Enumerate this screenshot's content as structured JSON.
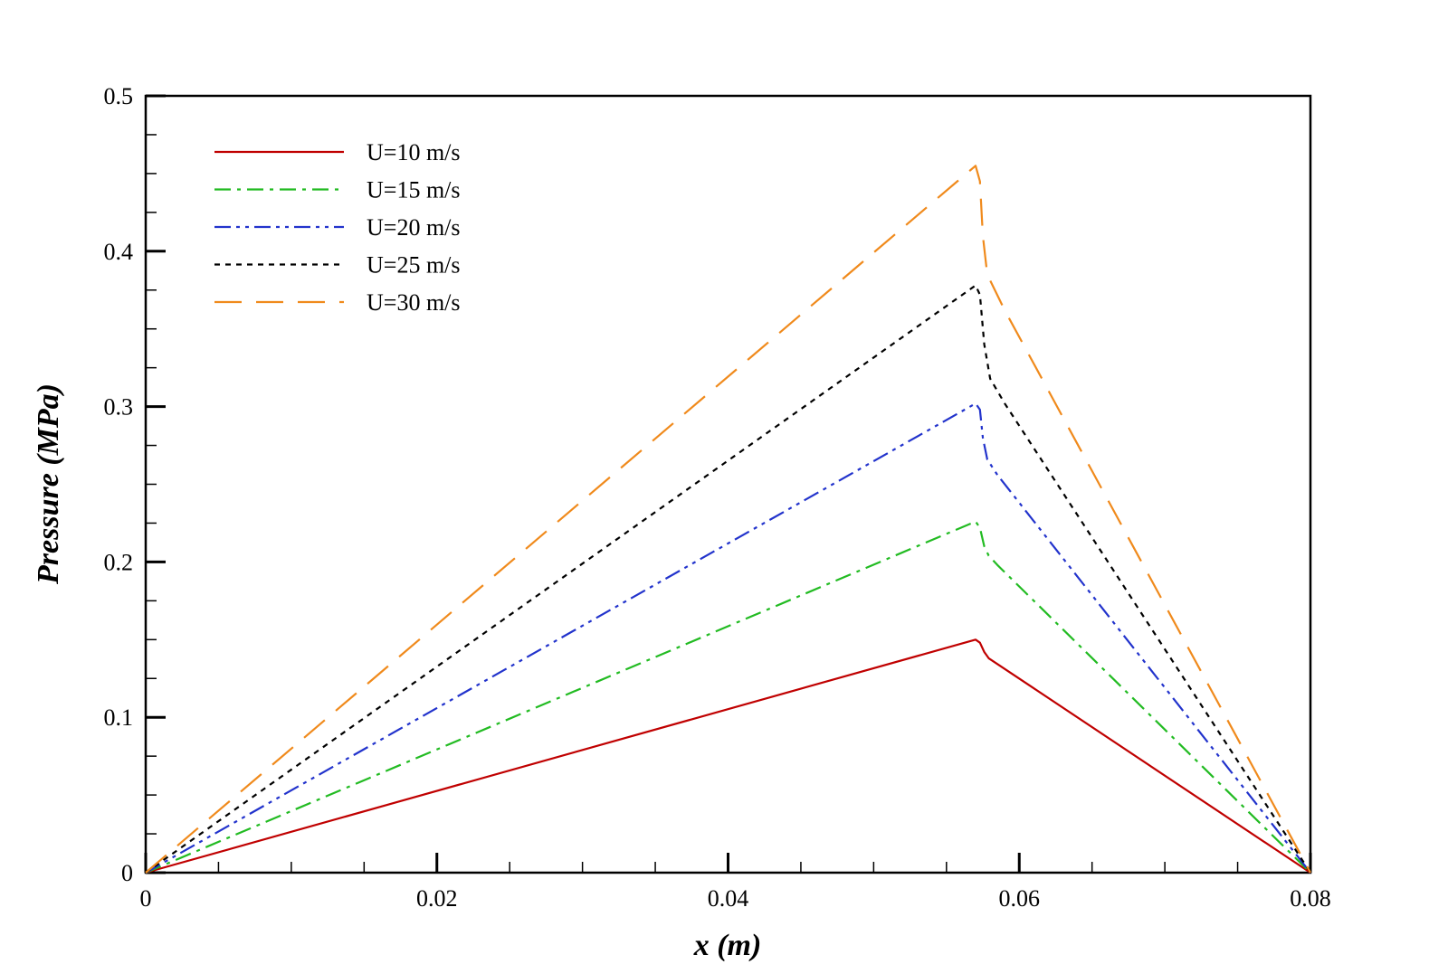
{
  "chart_data": {
    "type": "line",
    "xlabel": "x (m)",
    "ylabel": "Pressure (MPa)",
    "xlim": [
      0,
      0.08
    ],
    "ylim": [
      0,
      0.5
    ],
    "xticks": [
      0,
      0.02,
      0.04,
      0.06,
      0.08
    ],
    "xtick_labels": [
      "0",
      "0.02",
      "0.04",
      "0.06",
      "0.08"
    ],
    "yticks": [
      0,
      0.1,
      0.2,
      0.3,
      0.4,
      0.5
    ],
    "ytick_labels": [
      "0",
      "0.1",
      "0.2",
      "0.3",
      "0.4",
      "0.5"
    ],
    "grid": false,
    "legend_position": "top-left",
    "series": [
      {
        "name": "U=10 m/s",
        "color": "#c00000",
        "dash": "solid",
        "x": [
          0,
          0.057,
          0.0573,
          0.0576,
          0.0579,
          0.08
        ],
        "y": [
          0,
          0.15,
          0.148,
          0.142,
          0.138,
          0
        ]
      },
      {
        "name": "U=15 m/s",
        "color": "#22bb22",
        "dash": "dashdot",
        "x": [
          0,
          0.057,
          0.0573,
          0.0576,
          0.0579,
          0.0585,
          0.08
        ],
        "y": [
          0,
          0.226,
          0.222,
          0.21,
          0.204,
          0.198,
          0
        ]
      },
      {
        "name": "U=20 m/s",
        "color": "#2233cc",
        "dash": "dashdotdot",
        "x": [
          0,
          0.057,
          0.0573,
          0.0575,
          0.0578,
          0.0585,
          0.08
        ],
        "y": [
          0,
          0.302,
          0.298,
          0.28,
          0.266,
          0.256,
          0
        ]
      },
      {
        "name": "U=25 m/s",
        "color": "#000000",
        "dash": "dotted",
        "x": [
          0,
          0.057,
          0.0573,
          0.0576,
          0.058,
          0.059,
          0.08
        ],
        "y": [
          0,
          0.378,
          0.372,
          0.34,
          0.318,
          0.302,
          0
        ]
      },
      {
        "name": "U=30 m/s",
        "color": "#f08a1c",
        "dash": "longdash",
        "x": [
          0,
          0.057,
          0.0573,
          0.0575,
          0.0578,
          0.059,
          0.08
        ],
        "y": [
          0,
          0.455,
          0.445,
          0.41,
          0.385,
          0.362,
          0
        ]
      }
    ]
  }
}
